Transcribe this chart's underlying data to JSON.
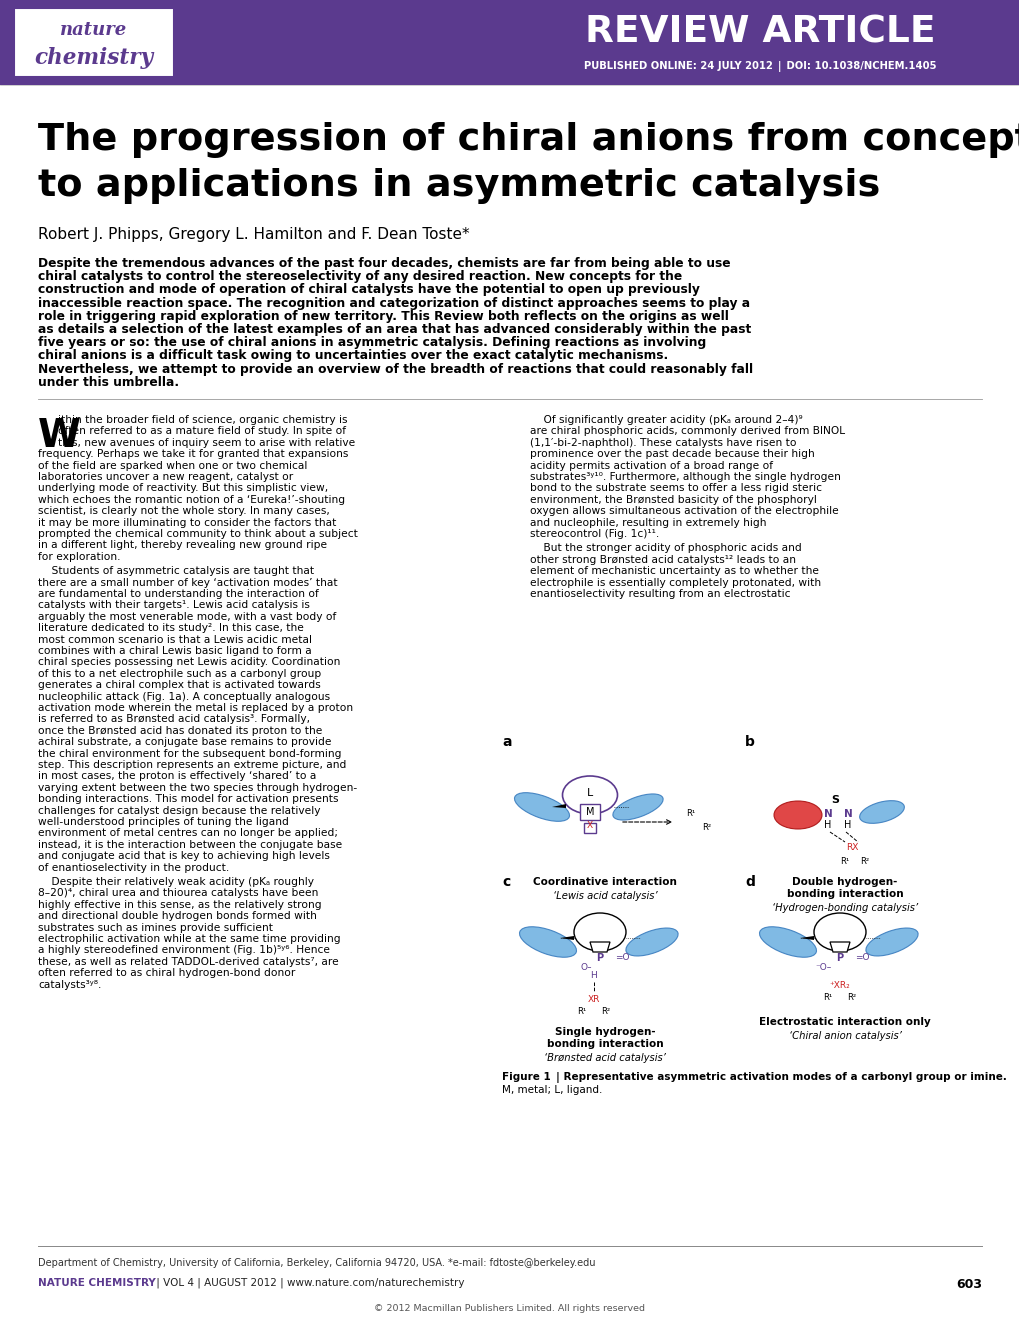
{
  "header_bg_color": "#5b3a8e",
  "header_text_color": "#ffffff",
  "purple_color": "#5b3a8e",
  "bg_color": "#ffffff",
  "review_article_text": "REVIEW ARTICLE",
  "published_text": "PUBLISHED ONLINE: 24 JULY 2012 | DOI: 10.1038/NCHEM.1405",
  "title_line1": "The progression of chiral anions from concepts",
  "title_line2": "to applications in asymmetric catalysis",
  "authors": "Robert J. Phipps, Gregory L. Hamilton and F. Dean Toste*",
  "abstract_bold": "Despite the tremendous advances of the past four decades, chemists are far from being able to use chiral catalysts to control the stereoselectivity of any desired reaction. New concepts for the construction and mode of operation of chiral catalysts have the potential to open up previously inaccessible reaction space. The recognition and categorization of distinct approaches seems to play a role in triggering rapid exploration of new territory. This Review both reflects on the origins as well as details a selection of the latest examples of an area that has advanced considerably within the past five years or so: the use of chiral anions in asymmetric catalysis. Defining reactions as involving chiral anions is a difficult task owing to uncertainties over the exact catalytic mechanisms. Nevertheless, we attempt to provide an overview of the breadth of reactions that could reasonably fall under this umbrella.",
  "col1_para1": "ithin the broader field of science, organic chemistry is often referred to as a mature field of study. In spite of this, new avenues of inquiry seem to arise with relative frequency. Perhaps we take it for granted that expansions of the field are sparked when one or two chemical laboratories uncover a new reagent, catalyst or underlying mode of reactivity. But this simplistic view, which echoes the romantic notion of a ‘Eureka!’-shouting scientist, is clearly not the whole story. In many cases, it may be more illuminating to consider the factors that prompted the chemical community to think about a subject in a different light, thereby revealing new ground ripe for exploration.",
  "col1_para2": "Students of asymmetric catalysis are taught that there are a small number of key ‘activation modes’ that are fundamental to understanding the interaction of catalysts with their targets¹. Lewis acid catalysis is arguably the most venerable mode, with a vast body of literature dedicated to its study². In this case, the most common scenario is that a Lewis acidic metal combines with a chiral Lewis basic ligand to form a chiral species possessing net Lewis acidity. Coordination of this to a net electrophile such as a carbonyl group generates a chiral complex that is activated towards nucleophilic attack (Fig. 1a). A conceptually analogous activation mode wherein the metal is replaced by a proton is referred to as Brønsted acid catalysis³. Formally, once the Brønsted acid has donated its proton to the achiral substrate, a conjugate base remains to provide the chiral environment for the subsequent bond-forming step. This description represents an extreme picture, and in most cases, the proton is effectively ‘shared’ to a varying extent between the two species through hydrogen-bonding interactions. This model for activation presents challenges for catalyst design because the relatively well-understood principles of tuning the ligand environment of metal centres can no longer be applied; instead, it is the interaction between the conjugate base and conjugate acid that is key to achieving high levels of enantioselectivity in the product.",
  "col1_para3": "Despite their relatively weak acidity (pKₐ roughly 8–20)⁴, chiral urea and thiourea catalysts have been highly effective in this sense, as the relatively strong and directional double hydrogen bonds formed with substrates such as imines provide sufficient electrophilic activation while at the same time providing a highly stereodefined environment (Fig. 1b)⁵ʸ⁶. Hence these, as well as related TADDOL-derived catalysts⁷, are often referred to as chiral hydrogen-bond donor catalysts³ʸ⁸.",
  "col2_para1": "Of significantly greater acidity (pKₐ around 2–4)⁹ are chiral phosphoric acids, commonly derived from BINOL (1,1′-bi-2-naphthol). These catalysts have risen to prominence over the past decade because their high acidity permits activation of a broad range of substrates³ʸ¹⁰. Furthermore, although the single hydrogen bond to the substrate seems to offer a less rigid steric environment, the Brønsted basicity of the phosphoryl oxygen allows simultaneous activation of the electrophile and nucleophile, resulting in extremely high stereocontrol (Fig. 1c)¹¹.",
  "col2_para2": "But the stronger acidity of phosphoric acids and other strong Brønsted acid catalysts¹² leads to an element of mechanistic uncertainty as to whether the electrophile is essentially completely protonated, with enantioselectivity resulting from an electrostatic",
  "figure_caption_bold": "Figure 1 |",
  "figure_caption_bold_text": "Representative asymmetric activation modes of a carbonyl group or imine.",
  "figure_caption_normal": " M, metal; L, ligand.",
  "footer_dept": "Department of Chemistry, University of California, Berkeley, California 94720, USA. *e-mail: fdtoste@berkeley.edu",
  "footer_journal": "NATURE CHEMISTRY",
  "footer_info": " | VOL 4 | AUGUST 2012 | www.nature.com/naturechemistry",
  "footer_page": "603",
  "footer_copyright": "© 2012 Macmillan Publishers Limited. All rights reserved"
}
